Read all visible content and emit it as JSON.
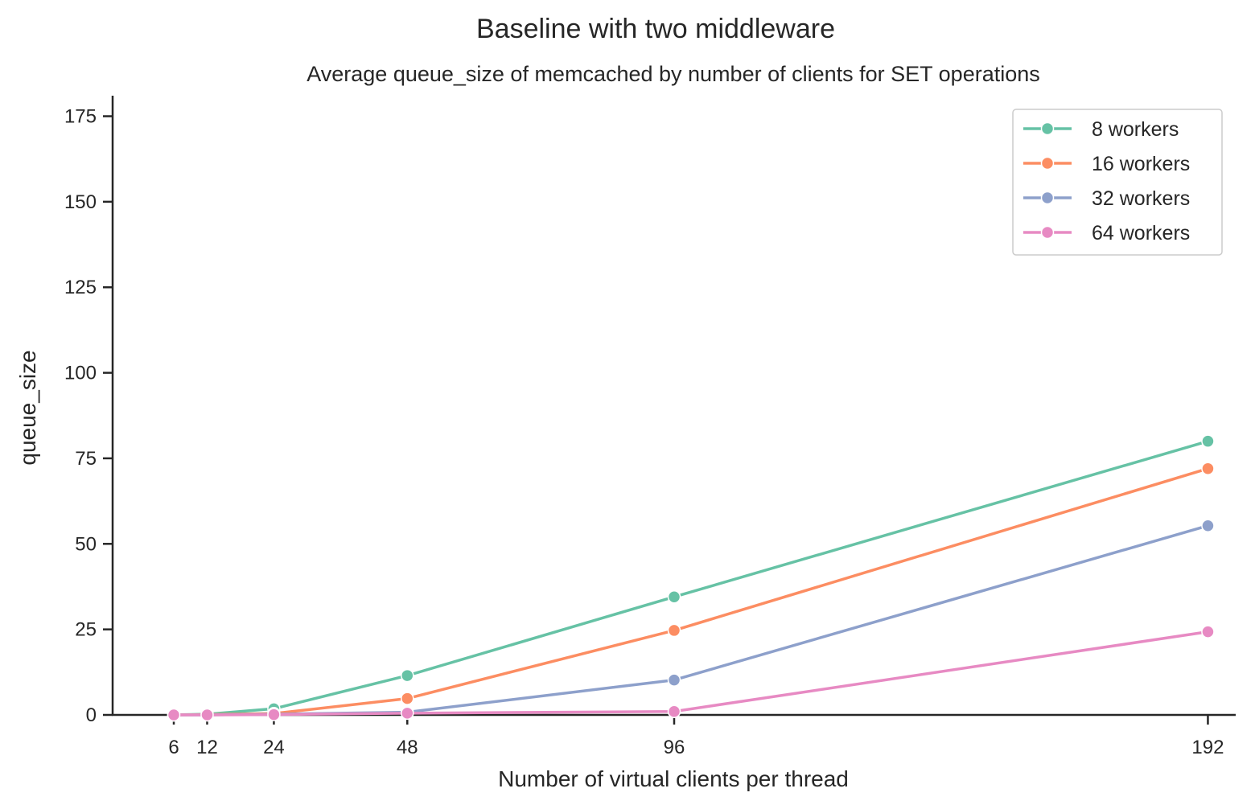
{
  "chart_data": {
    "type": "line",
    "suptitle": "Baseline with two middleware",
    "title": "Average queue_size of memcached by number of clients for SET operations",
    "xlabel": "Number of virtual clients per thread",
    "ylabel": "queue_size",
    "x": [
      6,
      12,
      24,
      48,
      96,
      192
    ],
    "xticks": [
      6,
      12,
      24,
      48,
      96,
      192
    ],
    "xlim": [
      -5,
      197
    ],
    "yticks": [
      0,
      25,
      50,
      75,
      100,
      125,
      150,
      175
    ],
    "ylim": [
      0,
      181
    ],
    "grid": false,
    "legend_position": "top-right",
    "series": [
      {
        "name": "8 workers",
        "color": "#66c2a5",
        "values": [
          0.0,
          0.2,
          1.8,
          11.5,
          34.5,
          80.0
        ]
      },
      {
        "name": "16 workers",
        "color": "#fc8d62",
        "values": [
          0.0,
          0.1,
          0.4,
          4.8,
          24.7,
          72.0
        ]
      },
      {
        "name": "32 workers",
        "color": "#8da0cb",
        "values": [
          0.0,
          0.0,
          0.2,
          0.8,
          10.2,
          55.3
        ]
      },
      {
        "name": "64 workers",
        "color": "#e78ac3",
        "values": [
          0.0,
          0.0,
          0.1,
          0.5,
          1.0,
          24.3
        ]
      }
    ]
  }
}
